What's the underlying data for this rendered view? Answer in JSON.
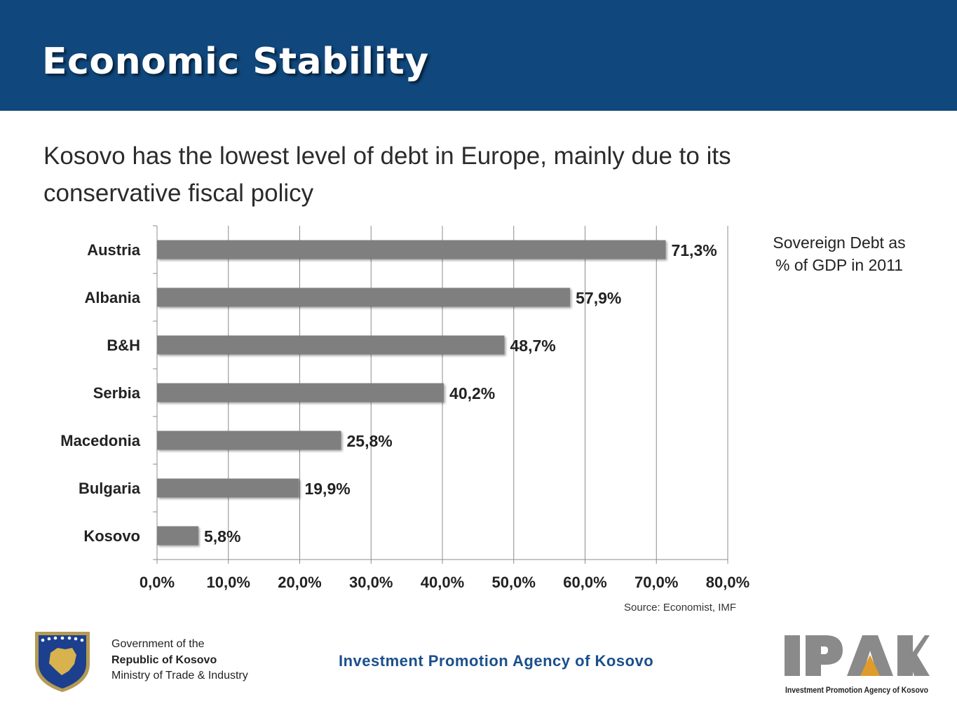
{
  "header": {
    "title": "Economic Stability",
    "band_color": "#10477c"
  },
  "subtitle": "Kosovo has the lowest level of debt in Europe, mainly due to its conservative fiscal policy",
  "side_note": {
    "line1": "Sovereign Debt as",
    "line2": "% of GDP in 2011"
  },
  "source": "Source: Economist, IMF",
  "footer": {
    "gov_line1": "Government of the",
    "gov_line2": "Republic of Kosovo",
    "gov_line3": "Ministry of Trade & Industry",
    "agency": "Investment Promotion Agency of Kosovo",
    "logo_letters": "IPAK",
    "logo_caption": "Investment Promotion Agency of Kosovo",
    "emblem_icon": "kosovo-coat-of-arms-icon"
  },
  "chart_data": {
    "type": "bar",
    "orientation": "horizontal",
    "categories": [
      "Austria",
      "Albania",
      "B&H",
      "Serbia",
      "Macedonia",
      "Bulgaria",
      "Kosovo"
    ],
    "values": [
      71.3,
      57.9,
      48.7,
      40.2,
      25.8,
      19.9,
      5.8
    ],
    "data_labels": [
      "71,3%",
      "57,9%",
      "48,7%",
      "40,2%",
      "25,8%",
      "19,9%",
      "5,8%"
    ],
    "xlim": [
      0,
      80
    ],
    "x_ticks": [
      0,
      10,
      20,
      30,
      40,
      50,
      60,
      70,
      80
    ],
    "x_tick_labels": [
      "0,0%",
      "10,0%",
      "20,0%",
      "30,0%",
      "40,0%",
      "50,0%",
      "60,0%",
      "70,0%",
      "80,0%"
    ],
    "grid": true,
    "bar_color": "#7f7f7f"
  }
}
